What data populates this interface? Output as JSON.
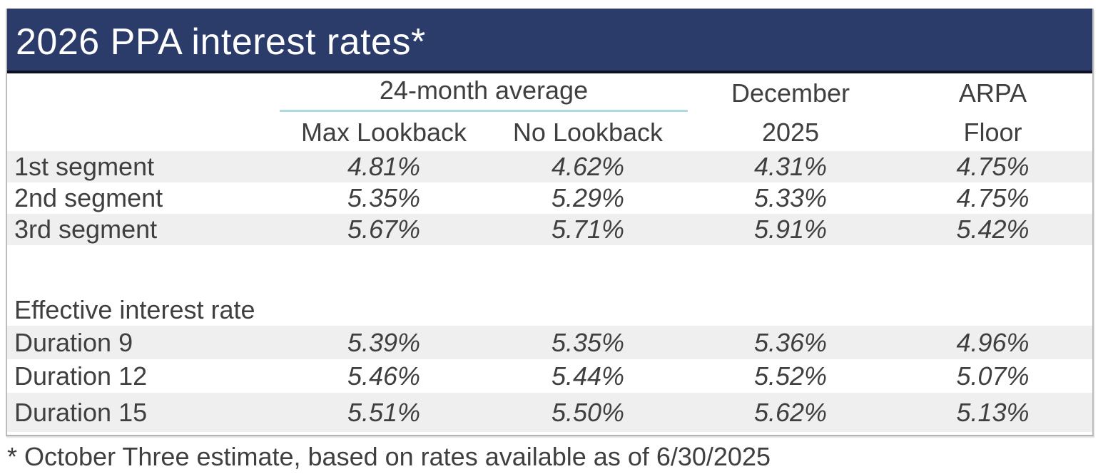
{
  "title": "2026 PPA interest rates*",
  "table": {
    "header": {
      "group_label": "24-month average",
      "col1": "Max Lookback",
      "col2": "No Lookback",
      "col3_line1": "December",
      "col3_line2": "2025",
      "col4_line1": "ARPA",
      "col4_line2": "Floor"
    },
    "rows": [
      {
        "label": "1st segment",
        "values": [
          "4.81%",
          "4.62%",
          "4.31%",
          "4.75%"
        ]
      },
      {
        "label": "2nd segment",
        "values": [
          "5.35%",
          "5.29%",
          "5.33%",
          "4.75%"
        ]
      },
      {
        "label": "3rd segment",
        "values": [
          "5.67%",
          "5.71%",
          "5.91%",
          "5.42%"
        ]
      },
      {
        "label": "Effective interest rate",
        "values": [
          "",
          "",
          "",
          ""
        ]
      },
      {
        "label": "Duration 9",
        "values": [
          "5.39%",
          "5.35%",
          "5.36%",
          "4.96%"
        ]
      },
      {
        "label": "Duration 12",
        "values": [
          "5.46%",
          "5.44%",
          "5.52%",
          "5.07%"
        ]
      },
      {
        "label": "Duration 15",
        "values": [
          "5.51%",
          "5.50%",
          "5.62%",
          "5.13%"
        ]
      }
    ]
  },
  "footnote": "* October Three estimate, based on rates available as of 6/30/2025",
  "colors": {
    "title_bg": "#2b3c6b",
    "title_text": "#ffffff",
    "title_bottom_border": "#0c1020",
    "row_stripe": "#efefef",
    "body_text": "#3f3f3f",
    "group_underline": "#afdae2",
    "frame_border": "#bdbdbd"
  }
}
